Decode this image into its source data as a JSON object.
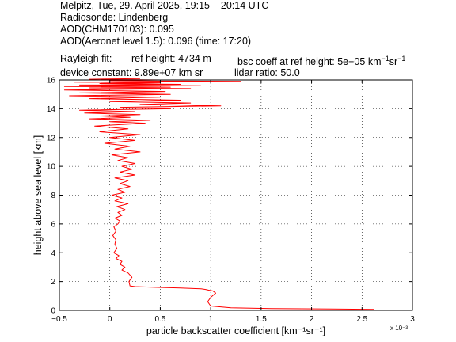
{
  "header": {
    "line1": "Melpitz, Tue, 29. April 2025, 19:15 – 20:14 UTC",
    "line2": "Radiosonde: Lindenberg",
    "line3": "AOD(CHM170103): 0.095",
    "line4": "AOD(Aeronet level 1.5): 0.096   (time: 17:20)",
    "rayleigh_label": "Rayleigh fit:",
    "ref_height": "ref height: 4734 m",
    "bsc_coeff_prefix": "bsc coeff at ref height: 5e−05 km",
    "device_constant": "device constant: 9.89e+07 km sr",
    "lidar_ratio": "lidar ratio: 50.0"
  },
  "chart_data": {
    "type": "line",
    "xlabel": "particle backscatter coefficient [km⁻¹sr⁻¹]",
    "ylabel": "height above sea level [km]",
    "x_multiplier": "x 10⁻³",
    "xlim": [
      -0.5,
      3
    ],
    "ylim": [
      0,
      16
    ],
    "xticks": [
      "−0.5",
      "0",
      "0.5",
      "1",
      "1.5",
      "2",
      "2.5",
      "3"
    ],
    "yticks": [
      "0",
      "2",
      "4",
      "6",
      "8",
      "10",
      "12",
      "14",
      "16"
    ],
    "grid": true,
    "line_color": "#ff0000",
    "series": [
      {
        "x": [
          2.62,
          2.2,
          1.6,
          1.2,
          1.0,
          0.97,
          1.0,
          1.05,
          1.02,
          0.98,
          0.95,
          0.9,
          0.7,
          0.45,
          0.25,
          0.2,
          0.19,
          0.22,
          0.18,
          0.12,
          0.15,
          0.1,
          0.12,
          0.06,
          0.09,
          0.04,
          0.07,
          0.05,
          0.06,
          0.03,
          0.06,
          0.04,
          0.08,
          0.1,
          0.05,
          0.12,
          0.08,
          0.15,
          0.07,
          0.18,
          0.05,
          0.12,
          0.02,
          0.15,
          0.08,
          0.2,
          0.1,
          0.18,
          0.05,
          0.25,
          0.1,
          0.22,
          0.12,
          0.25,
          0.08,
          0.18,
          0.02,
          0.3,
          0.05,
          0.2,
          -0.05,
          0.25,
          0.0,
          0.3,
          -0.1,
          0.18,
          -0.15,
          0.35,
          0.0,
          0.4,
          -0.2,
          0.2,
          -0.1,
          0.3,
          -0.25,
          0.25,
          -0.3,
          0.6,
          0.1,
          1.1,
          0.3,
          0.8,
          0.0,
          0.7,
          -0.2,
          0.5,
          -0.4,
          0.6,
          -0.3,
          0.55,
          -0.45,
          0.8,
          -0.2,
          0.6,
          -0.45,
          0.9,
          -0.3,
          0.7,
          -0.1,
          0.5,
          -0.35,
          1.3,
          0.0,
          0.5,
          -0.2,
          0.3
        ],
        "y": [
          0.07,
          0.1,
          0.12,
          0.18,
          0.3,
          0.6,
          0.9,
          1.2,
          1.35,
          1.4,
          1.45,
          1.5,
          1.55,
          1.6,
          1.65,
          1.7,
          2.0,
          2.3,
          2.6,
          2.8,
          3.0,
          3.2,
          3.4,
          3.6,
          3.8,
          4.0,
          4.3,
          4.6,
          4.9,
          5.2,
          5.5,
          5.8,
          6.0,
          6.2,
          6.4,
          6.6,
          6.8,
          7.0,
          7.2,
          7.4,
          7.6,
          7.8,
          8.0,
          8.2,
          8.4,
          8.6,
          8.8,
          9.0,
          9.2,
          9.4,
          9.6,
          9.8,
          10.0,
          10.2,
          10.4,
          10.6,
          10.8,
          11.0,
          11.2,
          11.4,
          11.6,
          11.8,
          12.0,
          12.2,
          12.4,
          12.6,
          12.8,
          13.0,
          13.1,
          13.2,
          13.3,
          13.4,
          13.5,
          13.6,
          13.7,
          13.8,
          13.9,
          14.0,
          14.1,
          14.2,
          14.3,
          14.4,
          14.5,
          14.6,
          14.7,
          14.8,
          14.9,
          15.0,
          15.1,
          15.2,
          15.3,
          15.4,
          15.45,
          15.5,
          15.55,
          15.6,
          15.65,
          15.7,
          15.75,
          15.8,
          15.85,
          15.9,
          15.95,
          16.0,
          16.05,
          16.1
        ]
      }
    ]
  }
}
